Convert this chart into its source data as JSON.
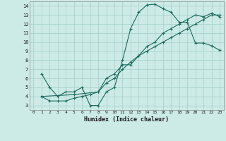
{
  "xlabel": "Humidex (Indice chaleur)",
  "ylabel": "",
  "bg_color": "#cceae6",
  "grid_color": "#aad4cf",
  "line_color": "#1a6b5e",
  "xlim": [
    -0.5,
    23.5
  ],
  "ylim": [
    2.5,
    14.5
  ],
  "xticks": [
    0,
    1,
    2,
    3,
    4,
    5,
    6,
    7,
    8,
    9,
    10,
    11,
    12,
    13,
    14,
    15,
    16,
    17,
    18,
    19,
    20,
    21,
    22,
    23
  ],
  "yticks": [
    3,
    4,
    5,
    6,
    7,
    8,
    9,
    10,
    11,
    12,
    13,
    14
  ],
  "line1_x": [
    1,
    2,
    3,
    4,
    5,
    6,
    7,
    8,
    9,
    10,
    11,
    12,
    13,
    14,
    15,
    16,
    17,
    18,
    19,
    20,
    21,
    22,
    23
  ],
  "line1_y": [
    6.5,
    5.0,
    4.0,
    4.5,
    4.5,
    5.0,
    3.0,
    3.0,
    4.5,
    5.0,
    8.0,
    11.5,
    13.3,
    14.1,
    14.2,
    13.7,
    13.3,
    12.2,
    12.2,
    9.9,
    9.9,
    9.6,
    9.1
  ],
  "line2_x": [
    1,
    2,
    3,
    4,
    5,
    6,
    7,
    8,
    9,
    10,
    11,
    12,
    13,
    14,
    15,
    16,
    17,
    18,
    19,
    20,
    21,
    22,
    23
  ],
  "line2_y": [
    4.0,
    3.5,
    3.5,
    3.5,
    3.8,
    4.0,
    4.2,
    4.5,
    5.5,
    6.0,
    7.0,
    7.8,
    8.5,
    9.0,
    9.5,
    10.0,
    10.5,
    11.0,
    11.5,
    12.0,
    12.5,
    13.0,
    13.0
  ],
  "line3_x": [
    1,
    5,
    8,
    9,
    10,
    11,
    12,
    13,
    14,
    15,
    16,
    17,
    18,
    19,
    20,
    21,
    22,
    23
  ],
  "line3_y": [
    4.0,
    4.2,
    4.5,
    6.0,
    6.5,
    7.5,
    7.5,
    8.5,
    9.5,
    10.0,
    11.0,
    11.5,
    12.0,
    12.5,
    13.0,
    12.8,
    13.2,
    12.8
  ]
}
